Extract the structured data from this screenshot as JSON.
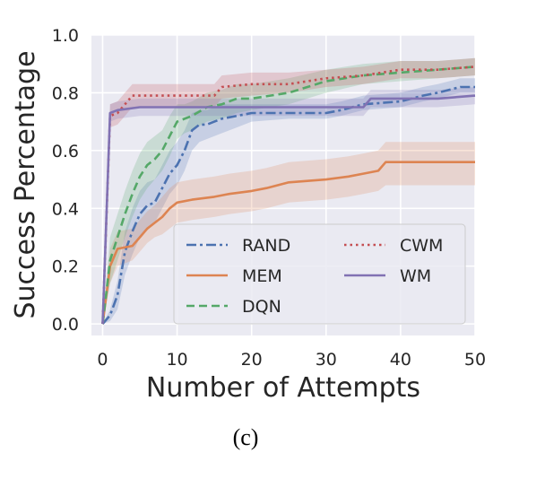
{
  "caption": "(c)",
  "chart_data": {
    "type": "line",
    "title": "",
    "xlabel": "Number of Attempts",
    "ylabel": "Success Percentage",
    "xlim": [
      -1.5,
      50
    ],
    "ylim": [
      -0.04,
      1.0
    ],
    "xticks": [
      0,
      10,
      20,
      30,
      40,
      50
    ],
    "yticks": [
      0.0,
      0.2,
      0.4,
      0.6,
      0.8,
      1.0
    ],
    "xtick_labels": [
      "0",
      "10",
      "20",
      "30",
      "40",
      "50"
    ],
    "ytick_labels": [
      "0.0",
      "0.2",
      "0.4",
      "0.6",
      "0.8",
      "1.0"
    ],
    "grid": true,
    "legend": "lower-right",
    "series": [
      {
        "name": "RAND",
        "color": "#4c72b0",
        "dash": "dashdot",
        "x": [
          0,
          1,
          2,
          3,
          4,
          5,
          6,
          7,
          8,
          9,
          10,
          11,
          12,
          13,
          14,
          15,
          16,
          18,
          20,
          25,
          30,
          32,
          35,
          40,
          43,
          45,
          48,
          50
        ],
        "y": [
          0.0,
          0.03,
          0.1,
          0.25,
          0.32,
          0.38,
          0.41,
          0.42,
          0.47,
          0.52,
          0.55,
          0.6,
          0.67,
          0.69,
          0.69,
          0.7,
          0.71,
          0.72,
          0.73,
          0.73,
          0.73,
          0.74,
          0.76,
          0.77,
          0.79,
          0.8,
          0.82,
          0.82
        ],
        "lower": [
          0.0,
          0.01,
          0.05,
          0.17,
          0.24,
          0.3,
          0.33,
          0.35,
          0.4,
          0.45,
          0.48,
          0.53,
          0.6,
          0.63,
          0.64,
          0.65,
          0.66,
          0.68,
          0.7,
          0.71,
          0.71,
          0.72,
          0.74,
          0.75,
          0.77,
          0.78,
          0.8,
          0.8
        ],
        "upper": [
          0.0,
          0.05,
          0.15,
          0.32,
          0.4,
          0.46,
          0.49,
          0.5,
          0.55,
          0.6,
          0.63,
          0.67,
          0.73,
          0.74,
          0.74,
          0.75,
          0.76,
          0.76,
          0.76,
          0.76,
          0.76,
          0.77,
          0.79,
          0.8,
          0.82,
          0.83,
          0.85,
          0.85
        ]
      },
      {
        "name": "MEM",
        "color": "#dd8452",
        "dash": "solid",
        "x": [
          0,
          1,
          2,
          4,
          5,
          6,
          7,
          8,
          9,
          10,
          12,
          15,
          17,
          20,
          22,
          25,
          30,
          33,
          35,
          37,
          38,
          40,
          45,
          50
        ],
        "y": [
          0.0,
          0.2,
          0.26,
          0.27,
          0.3,
          0.33,
          0.35,
          0.37,
          0.4,
          0.42,
          0.43,
          0.44,
          0.45,
          0.46,
          0.47,
          0.49,
          0.5,
          0.51,
          0.52,
          0.53,
          0.56,
          0.56,
          0.56,
          0.56
        ],
        "lower": [
          0.0,
          0.14,
          0.2,
          0.22,
          0.25,
          0.28,
          0.3,
          0.31,
          0.33,
          0.35,
          0.36,
          0.37,
          0.38,
          0.39,
          0.4,
          0.42,
          0.43,
          0.44,
          0.45,
          0.46,
          0.48,
          0.48,
          0.48,
          0.48
        ],
        "upper": [
          0.0,
          0.26,
          0.32,
          0.33,
          0.36,
          0.39,
          0.41,
          0.44,
          0.47,
          0.49,
          0.5,
          0.51,
          0.52,
          0.53,
          0.54,
          0.56,
          0.57,
          0.58,
          0.59,
          0.6,
          0.63,
          0.63,
          0.63,
          0.63
        ]
      },
      {
        "name": "DQN",
        "color": "#55a868",
        "dash": "dashed",
        "x": [
          0,
          1,
          2,
          3,
          4,
          5,
          6,
          7,
          8,
          9,
          10,
          11,
          12,
          14,
          16,
          18,
          20,
          25,
          30,
          35,
          40,
          45,
          50
        ],
        "y": [
          0.0,
          0.22,
          0.3,
          0.38,
          0.45,
          0.51,
          0.55,
          0.57,
          0.6,
          0.65,
          0.7,
          0.71,
          0.72,
          0.75,
          0.76,
          0.78,
          0.78,
          0.8,
          0.84,
          0.86,
          0.87,
          0.88,
          0.89
        ],
        "lower": [
          0.0,
          0.14,
          0.22,
          0.3,
          0.37,
          0.43,
          0.47,
          0.5,
          0.53,
          0.58,
          0.64,
          0.66,
          0.67,
          0.7,
          0.71,
          0.73,
          0.74,
          0.76,
          0.8,
          0.83,
          0.84,
          0.85,
          0.86
        ],
        "upper": [
          0.0,
          0.3,
          0.38,
          0.46,
          0.53,
          0.59,
          0.63,
          0.65,
          0.67,
          0.72,
          0.76,
          0.76,
          0.77,
          0.8,
          0.81,
          0.83,
          0.83,
          0.85,
          0.88,
          0.9,
          0.91,
          0.91,
          0.92
        ]
      },
      {
        "name": "CWM",
        "color": "#c44e52",
        "dash": "dotted",
        "x": [
          0,
          1,
          2,
          3,
          4,
          10,
          12,
          15,
          16,
          20,
          25,
          30,
          35,
          40,
          45,
          50
        ],
        "y": [
          0.0,
          0.72,
          0.73,
          0.76,
          0.79,
          0.79,
          0.79,
          0.79,
          0.82,
          0.83,
          0.83,
          0.85,
          0.86,
          0.88,
          0.88,
          0.89
        ],
        "lower": [
          0.0,
          0.68,
          0.69,
          0.72,
          0.75,
          0.75,
          0.75,
          0.75,
          0.78,
          0.79,
          0.8,
          0.82,
          0.83,
          0.85,
          0.85,
          0.86
        ],
        "upper": [
          0.0,
          0.76,
          0.77,
          0.8,
          0.83,
          0.83,
          0.83,
          0.83,
          0.86,
          0.87,
          0.87,
          0.88,
          0.89,
          0.91,
          0.91,
          0.92
        ]
      },
      {
        "name": "WM",
        "color": "#8172b3",
        "dash": "solid",
        "x": [
          0,
          1,
          2,
          5,
          10,
          20,
          30,
          35,
          36,
          40,
          45,
          50
        ],
        "y": [
          0.0,
          0.73,
          0.74,
          0.75,
          0.75,
          0.75,
          0.75,
          0.75,
          0.78,
          0.78,
          0.78,
          0.79
        ],
        "lower": [
          0.0,
          0.7,
          0.71,
          0.72,
          0.72,
          0.72,
          0.72,
          0.72,
          0.75,
          0.75,
          0.75,
          0.76
        ],
        "upper": [
          0.0,
          0.76,
          0.77,
          0.78,
          0.78,
          0.78,
          0.78,
          0.78,
          0.81,
          0.81,
          0.81,
          0.82
        ]
      }
    ]
  }
}
